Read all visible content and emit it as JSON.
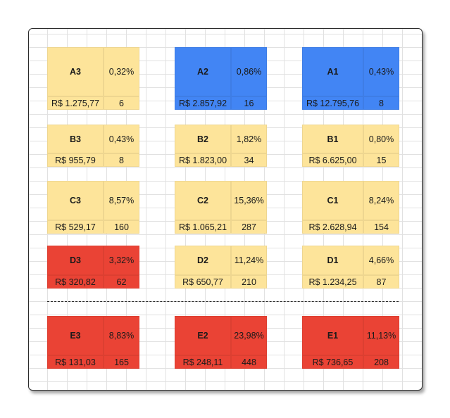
{
  "colors": {
    "yellow": "#fde49a",
    "blue": "#4285f4",
    "red": "#ea4335"
  },
  "blocks": [
    {
      "row": "A",
      "col": 0,
      "color": "yellow",
      "label": "A3",
      "percent": "0,32%",
      "value": "R$ 1.275,77",
      "count": "6"
    },
    {
      "row": "A",
      "col": 1,
      "color": "blue",
      "label": "A2",
      "percent": "0,86%",
      "value": "R$ 2.857,92",
      "count": "16"
    },
    {
      "row": "A",
      "col": 2,
      "color": "blue",
      "label": "A1",
      "percent": "0,43%",
      "value": "R$ 12.795,76",
      "count": "8"
    },
    {
      "row": "B",
      "col": 0,
      "color": "yellow",
      "label": "B3",
      "percent": "0,43%",
      "value": "R$ 955,79",
      "count": "8"
    },
    {
      "row": "B",
      "col": 1,
      "color": "yellow",
      "label": "B2",
      "percent": "1,82%",
      "value": "R$ 1.823,00",
      "count": "34"
    },
    {
      "row": "B",
      "col": 2,
      "color": "yellow",
      "label": "B1",
      "percent": "0,80%",
      "value": "R$ 6.625,00",
      "count": "15"
    },
    {
      "row": "C",
      "col": 0,
      "color": "yellow",
      "label": "C3",
      "percent": "8,57%",
      "value": "R$ 529,17",
      "count": "160"
    },
    {
      "row": "C",
      "col": 1,
      "color": "yellow",
      "label": "C2",
      "percent": "15,36%",
      "value": "R$ 1.065,21",
      "count": "287"
    },
    {
      "row": "C",
      "col": 2,
      "color": "yellow",
      "label": "C1",
      "percent": "8,24%",
      "value": "R$ 2.628,94",
      "count": "154"
    },
    {
      "row": "D",
      "col": 0,
      "color": "red",
      "label": "D3",
      "percent": "3,32%",
      "value": "R$ 320,82",
      "count": "62"
    },
    {
      "row": "D",
      "col": 1,
      "color": "yellow",
      "label": "D2",
      "percent": "11,24%",
      "value": "R$ 650,77",
      "count": "210"
    },
    {
      "row": "D",
      "col": 2,
      "color": "yellow",
      "label": "D1",
      "percent": "4,66%",
      "value": "R$ 1.234,25",
      "count": "87"
    },
    {
      "row": "E",
      "col": 0,
      "color": "red",
      "label": "E3",
      "percent": "8,83%",
      "value": "R$ 131,03",
      "count": "165"
    },
    {
      "row": "E",
      "col": 1,
      "color": "red",
      "label": "E2",
      "percent": "23,98%",
      "value": "R$ 248,11",
      "count": "448"
    },
    {
      "row": "E",
      "col": 2,
      "color": "red",
      "label": "E1",
      "percent": "11,13%",
      "value": "R$ 736,65",
      "count": "208"
    }
  ]
}
